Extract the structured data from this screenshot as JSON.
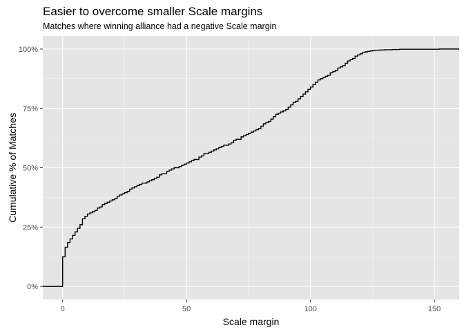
{
  "colors": {
    "panel_background": "#E5E5E5",
    "grid_major": "#FFFFFF",
    "grid_minor": "#F2F2F2",
    "line": "#000000",
    "tick_text": "#4D4D4D",
    "axis_ticks": "#333333"
  },
  "chart_data": {
    "type": "line",
    "style": "step-ecdf",
    "title": "Easier to overcome smaller Scale margins",
    "subtitle": "Matches where winning alliance had a negative Scale margin",
    "xlabel": "Scale margin",
    "ylabel": "Cumulative % of Matches",
    "xlim": [
      -8,
      160
    ],
    "ylim": [
      0,
      1
    ],
    "x_ticks": [
      0,
      50,
      100,
      150
    ],
    "x_tick_labels": [
      "0",
      "50",
      "100",
      "150"
    ],
    "y_ticks": [
      0,
      0.25,
      0.5,
      0.75,
      1.0
    ],
    "y_tick_labels": [
      "0%",
      "25%",
      "50%",
      "75%",
      "100%"
    ],
    "grid": true,
    "legend": "none",
    "series": [
      {
        "x": [
          -8,
          0,
          1,
          2,
          3,
          4,
          5,
          6,
          7,
          8,
          9,
          10,
          11,
          12,
          13,
          14,
          15,
          16,
          17,
          18,
          19,
          20,
          21,
          22,
          23,
          24,
          25,
          26,
          27,
          28,
          29,
          30,
          31,
          32,
          34,
          35,
          36,
          37,
          38,
          39,
          40,
          42,
          43,
          44,
          45,
          47,
          48,
          49,
          50,
          51,
          52,
          53,
          55,
          56,
          57,
          59,
          60,
          61,
          62,
          63,
          64,
          65,
          67,
          68,
          69,
          70,
          72,
          73,
          74,
          75,
          76,
          77,
          78,
          79,
          80,
          81,
          82,
          83,
          84,
          85,
          86,
          87,
          88,
          89,
          90,
          91,
          92,
          93,
          94,
          95,
          96,
          97,
          98,
          99,
          100,
          101,
          102,
          103,
          104,
          105,
          106,
          107,
          108,
          109,
          110,
          111,
          112,
          113,
          114,
          115,
          116,
          117,
          118,
          119,
          120,
          121,
          122,
          123,
          124,
          125,
          126,
          128,
          130,
          133,
          136,
          152,
          160
        ],
        "y": [
          0.0,
          0.125,
          0.165,
          0.185,
          0.2,
          0.215,
          0.23,
          0.245,
          0.26,
          0.285,
          0.295,
          0.305,
          0.31,
          0.315,
          0.32,
          0.33,
          0.335,
          0.345,
          0.35,
          0.355,
          0.36,
          0.365,
          0.37,
          0.38,
          0.385,
          0.39,
          0.395,
          0.4,
          0.41,
          0.415,
          0.42,
          0.425,
          0.43,
          0.435,
          0.44,
          0.445,
          0.45,
          0.455,
          0.46,
          0.47,
          0.475,
          0.485,
          0.49,
          0.495,
          0.5,
          0.505,
          0.51,
          0.515,
          0.52,
          0.525,
          0.53,
          0.535,
          0.545,
          0.55,
          0.56,
          0.565,
          0.57,
          0.575,
          0.58,
          0.585,
          0.59,
          0.595,
          0.6,
          0.605,
          0.615,
          0.62,
          0.63,
          0.635,
          0.64,
          0.645,
          0.65,
          0.655,
          0.66,
          0.665,
          0.675,
          0.685,
          0.69,
          0.695,
          0.705,
          0.715,
          0.725,
          0.73,
          0.735,
          0.74,
          0.745,
          0.755,
          0.765,
          0.775,
          0.78,
          0.79,
          0.8,
          0.81,
          0.82,
          0.83,
          0.84,
          0.85,
          0.86,
          0.87,
          0.875,
          0.88,
          0.885,
          0.89,
          0.9,
          0.905,
          0.91,
          0.92,
          0.925,
          0.93,
          0.94,
          0.95,
          0.955,
          0.96,
          0.97,
          0.975,
          0.98,
          0.985,
          0.988,
          0.99,
          0.992,
          0.994,
          0.995,
          0.996,
          0.997,
          0.998,
          0.999,
          1.0,
          1.0
        ]
      }
    ]
  }
}
